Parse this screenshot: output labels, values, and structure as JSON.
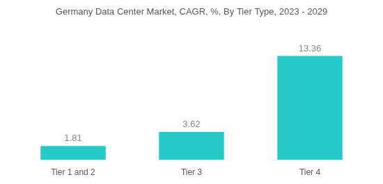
{
  "chart_data": {
    "type": "bar",
    "title": "Germany Data Center Market, CAGR, %, By Tier Type, 2023 - 2029",
    "categories": [
      "Tier 1 and 2",
      "Tier 3",
      "Tier 4"
    ],
    "values": [
      1.81,
      3.62,
      13.36
    ],
    "color": "#27CAC8",
    "ylim": [
      0,
      17
    ],
    "grid": false,
    "data_labels": true,
    "tick_labels": "x"
  }
}
